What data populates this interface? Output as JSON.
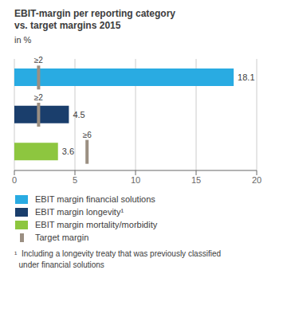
{
  "chart_data": {
    "type": "bar",
    "orientation": "horizontal",
    "title": "EBIT-margin per reporting category\nvs. target margins 2015",
    "subtitle": "in %",
    "categories": [
      null,
      null,
      null
    ],
    "series": [
      {
        "name": "EBIT margin financial solutions",
        "color": "#29ABE2",
        "values": [
          18.1,
          null,
          null
        ]
      },
      {
        "name": "EBIT margin longevity¹",
        "color": "#1A3E6C",
        "values": [
          null,
          4.5,
          null
        ]
      },
      {
        "name": "EBIT margin mortality/morbidity",
        "color": "#8DC63F",
        "values": [
          null,
          null,
          3.6
        ]
      },
      {
        "name": "Target margin",
        "type": "marker",
        "color": "#9B8F82",
        "values": [
          2,
          2,
          6
        ],
        "value_labels": [
          "≥2",
          "≥2",
          "≥6"
        ]
      }
    ],
    "xlim": [
      0,
      20
    ],
    "xticks": [
      0,
      5,
      10,
      15,
      20
    ],
    "grid": true,
    "data_labels": true,
    "legend": "bottom",
    "footnote": "¹  Including a longevity treaty that was previously classified\n  under financial solutions"
  }
}
